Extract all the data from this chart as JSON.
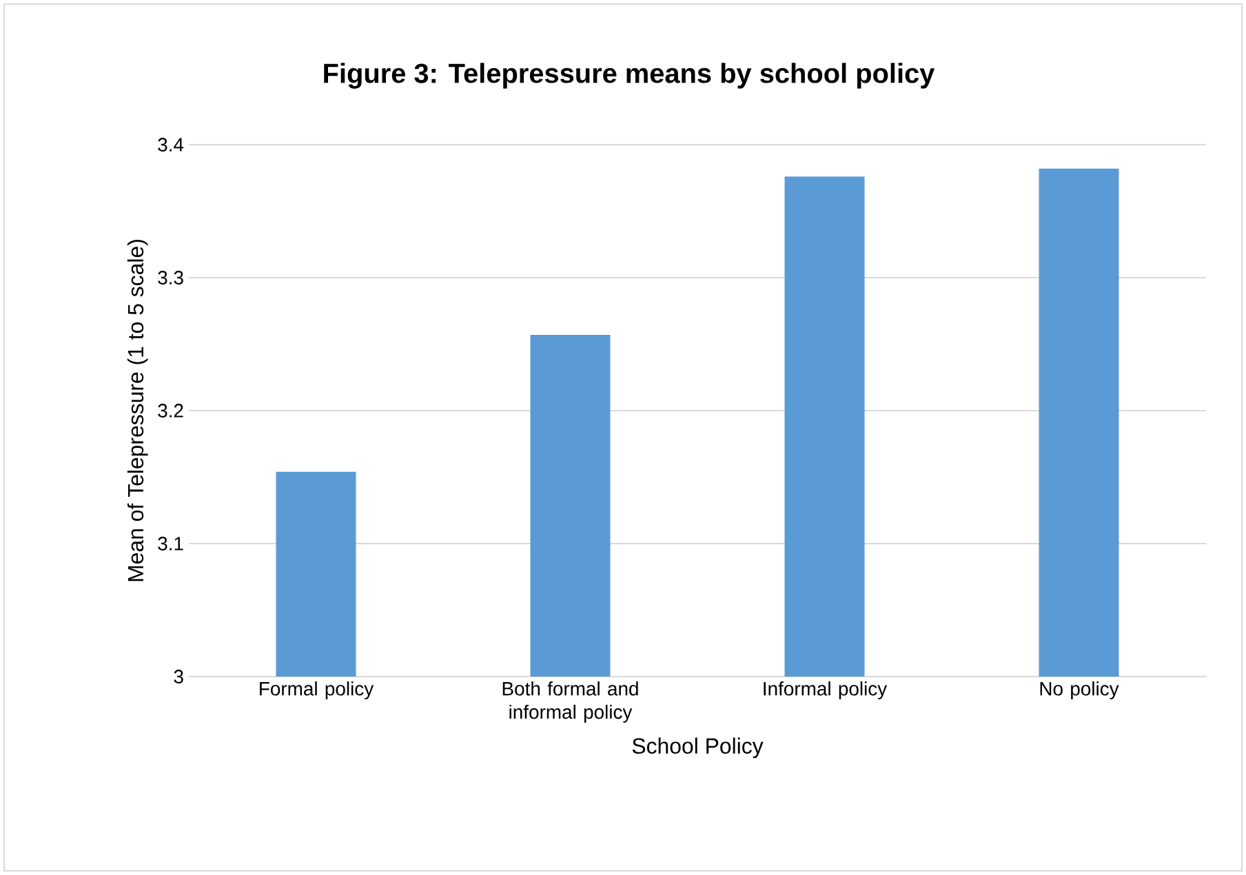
{
  "chart_data": {
    "type": "bar",
    "title": "Figure 3: Telepressure means by school policy",
    "categories": [
      "Formal policy",
      "Both formal and informal policy",
      "Informal policy",
      "No policy"
    ],
    "values": [
      3.154,
      3.257,
      3.376,
      3.382
    ],
    "color": "#5b9bd5",
    "xlabel": "School Policy",
    "ylabel": "Mean of Telepressure (1 to 5 scale)",
    "ylim": [
      3,
      3.4
    ],
    "yticks": [
      3,
      3.1,
      3.2,
      3.3,
      3.4
    ],
    "grid": "y"
  }
}
